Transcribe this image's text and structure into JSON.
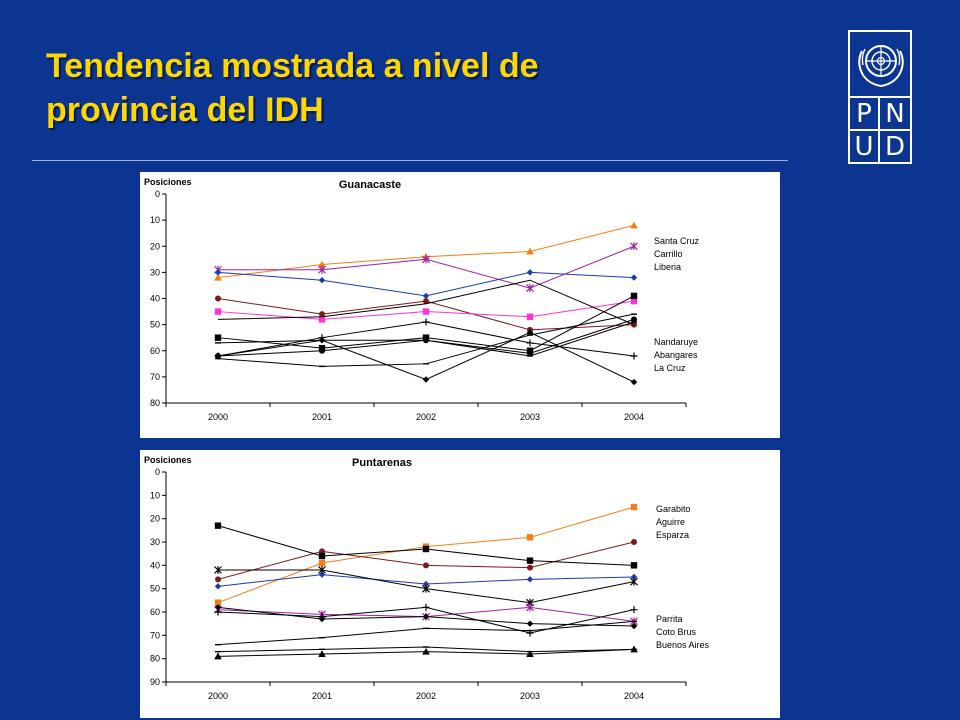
{
  "slide": {
    "title_line1": "Tendencia mostrada a nivel de",
    "title_line2": "provincia del IDH",
    "logo_letters": [
      "P",
      "N",
      "U",
      "D"
    ],
    "logo_icon": "un-emblem-icon",
    "colors": {
      "background": "#0b3591",
      "title": "#ffd700"
    }
  },
  "chart_data": [
    {
      "type": "line",
      "title": "Guanacaste",
      "ylabel": "Posiciones",
      "xlabel": "",
      "y_inverted": true,
      "ylim": [
        0,
        80
      ],
      "yticks": [
        0,
        10,
        20,
        30,
        40,
        50,
        60,
        70,
        80
      ],
      "x": [
        "2000",
        "2001",
        "2002",
        "2003",
        "2004"
      ],
      "grid": false,
      "legend_placement": "right",
      "legend_top": [
        "Santa Cruz",
        "Carrillo",
        "Liberia"
      ],
      "legend_bottom": [
        "Nandaruye",
        "Abangares",
        "La Cruz"
      ],
      "series": [
        {
          "values": [
            32,
            27,
            24,
            22,
            12
          ],
          "color": "#f07f1a",
          "marker": "triangle"
        },
        {
          "values": [
            29,
            29,
            25,
            36,
            20
          ],
          "color": "#a11fa1",
          "marker": "asterisk"
        },
        {
          "values": [
            30,
            33,
            39,
            30,
            32
          ],
          "color": "#1c3ca8",
          "marker": "diamond"
        },
        {
          "values": [
            40,
            46,
            41,
            52,
            50
          ],
          "color": "#7a1b1b",
          "marker": "circle"
        },
        {
          "values": [
            45,
            48,
            45,
            47,
            41
          ],
          "color": "#ff33cc",
          "marker": "square"
        },
        {
          "values": [
            48,
            47,
            42,
            33,
            50
          ],
          "color": "#000000",
          "marker": "none"
        },
        {
          "values": [
            55,
            59,
            55,
            60,
            39
          ],
          "color": "#000000",
          "marker": "square"
        },
        {
          "values": [
            57,
            56,
            56,
            62,
            49
          ],
          "color": "#000000",
          "marker": "dash"
        },
        {
          "values": [
            62,
            60,
            56,
            61,
            48
          ],
          "color": "#000000",
          "marker": "circle"
        },
        {
          "values": [
            62,
            55,
            49,
            57,
            62
          ],
          "color": "#000000",
          "marker": "plus"
        },
        {
          "values": [
            63,
            66,
            65,
            54,
            46
          ],
          "color": "#000000",
          "marker": "dash"
        },
        {
          "values": [
            62,
            56,
            71,
            53,
            72
          ],
          "color": "#000000",
          "marker": "diamond"
        }
      ]
    },
    {
      "type": "line",
      "title": "Puntarenas",
      "ylabel": "Posiciones",
      "xlabel": "",
      "y_inverted": true,
      "ylim": [
        0,
        90
      ],
      "yticks": [
        0,
        10,
        20,
        30,
        40,
        50,
        60,
        70,
        80,
        90
      ],
      "x": [
        "2000",
        "2001",
        "2002",
        "2003",
        "2004"
      ],
      "grid": false,
      "legend_placement": "right",
      "legend_top": [
        "Garabito",
        "Aguirre",
        "Esparza"
      ],
      "legend_bottom": [
        "Parrita",
        "Coto Brus",
        "Buenos Aires"
      ],
      "series": [
        {
          "values": [
            56,
            39,
            32,
            28,
            15
          ],
          "color": "#f07f1a",
          "marker": "square"
        },
        {
          "values": [
            46,
            34,
            40,
            41,
            30
          ],
          "color": "#7a1b1b",
          "marker": "circle"
        },
        {
          "values": [
            23,
            36,
            33,
            38,
            40
          ],
          "color": "#000000",
          "marker": "square"
        },
        {
          "values": [
            49,
            44,
            48,
            46,
            45
          ],
          "color": "#1c3ca8",
          "marker": "diamond"
        },
        {
          "values": [
            42,
            42,
            50,
            56,
            47
          ],
          "color": "#000000",
          "marker": "asterisk"
        },
        {
          "values": [
            59,
            61,
            62,
            58,
            64
          ],
          "color": "#a11fa1",
          "marker": "asterisk"
        },
        {
          "values": [
            60,
            62,
            58,
            69,
            59
          ],
          "color": "#000000",
          "marker": "plus"
        },
        {
          "values": [
            58,
            63,
            62,
            65,
            66
          ],
          "color": "#000000",
          "marker": "diamond"
        },
        {
          "values": [
            74,
            71,
            67,
            68,
            64
          ],
          "color": "#000000",
          "marker": "dash"
        },
        {
          "values": [
            77,
            76,
            75,
            77,
            76
          ],
          "color": "#000000",
          "marker": "dash"
        },
        {
          "values": [
            79,
            78,
            77,
            78,
            76
          ],
          "color": "#000000",
          "marker": "triangle"
        }
      ]
    }
  ]
}
